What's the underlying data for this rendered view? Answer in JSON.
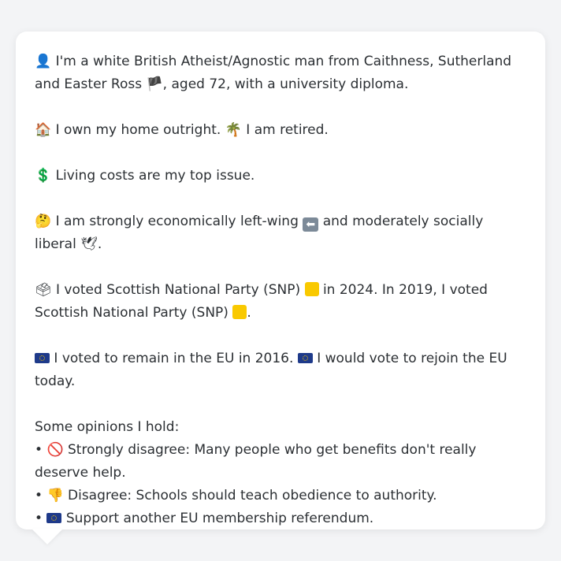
{
  "profile": {
    "intro_icon": "👤",
    "intro_text_1": "I'm a white British Atheist/Agnostic man from Caithness, Sutherland and Easter Ross",
    "intro_flag": "🏴",
    "intro_text_2": ", aged 72, with a university diploma.",
    "home_icon": "🏠",
    "home_text": "I own my home outright.",
    "retired_icon": "🌴",
    "retired_text": "I am retired.",
    "issue_icon": "💲",
    "issue_text": "Living costs are my top issue.",
    "politics_icon": "🤔",
    "politics_text_1": "I am strongly economically left-wing",
    "politics_arrow": "⬅",
    "politics_text_2": "and moderately socially liberal",
    "politics_dove": "🕊",
    "politics_end": ".",
    "vote_icon": "🗳",
    "vote_text_1": "I voted Scottish National Party (SNP)",
    "vote_text_2": "in 2024. In 2019, I voted Scottish National Party (SNP)",
    "vote_end": ".",
    "eu_text_1": "I voted to remain in the EU in 2016.",
    "eu_text_2": "I would vote to rejoin the EU today.",
    "opinions_heading": "Some opinions I hold:",
    "opinions": [
      {
        "bullet": "•",
        "icon": "🚫",
        "text": "Strongly disagree: Many people who get benefits don't really deserve help."
      },
      {
        "bullet": "•",
        "icon": "👎",
        "text": "Disagree: Schools should teach obedience to authority."
      },
      {
        "bullet": "•",
        "icon": "",
        "text": "Support another EU membership referendum."
      }
    ]
  },
  "colors": {
    "background": "#f3f4f6",
    "card": "#ffffff",
    "text": "#2b2f33",
    "snp_yellow": "#f9c900",
    "eu_blue": "#1e3a8a"
  }
}
